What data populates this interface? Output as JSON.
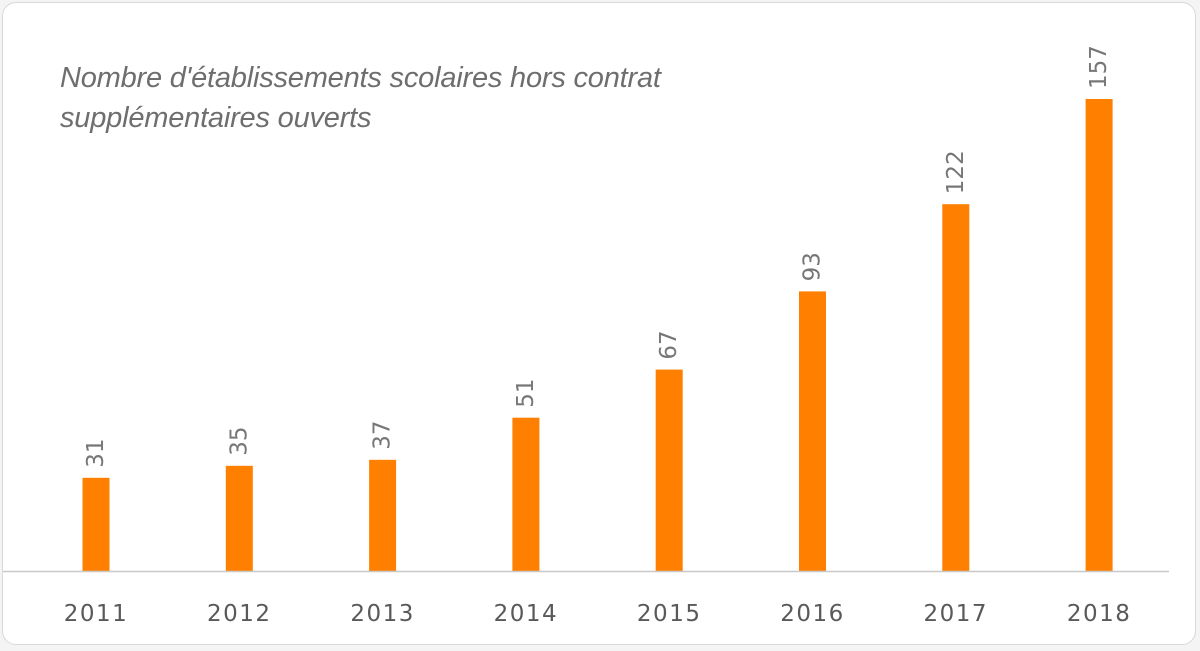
{
  "chart_data": {
    "type": "bar",
    "title": "Nombre d'établissements scolaires hors contrat supplémentaires ouverts",
    "categories": [
      "2011",
      "2012",
      "2013",
      "2014",
      "2015",
      "2016",
      "2017",
      "2018"
    ],
    "values": [
      31,
      35,
      37,
      51,
      67,
      93,
      122,
      157
    ],
    "data_labels": [
      "31",
      "35",
      "37",
      "51",
      "67",
      "93",
      "122",
      "157"
    ],
    "ylim": [
      0,
      157
    ],
    "grid": false,
    "legend": "none",
    "colors": {
      "bar": "#ff7f00",
      "axis": "#c8c8c8",
      "value_text": "#777777",
      "tick_text": "#595959",
      "title_text": "#6e6e6e"
    }
  }
}
